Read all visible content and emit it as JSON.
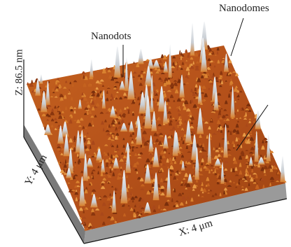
{
  "annotations": {
    "nanodomes": "Nanodomes",
    "nanodots": "Nanodots"
  },
  "axes": {
    "z": "Z: 86.5 nm",
    "y": "Y: 4 μm",
    "x": "X: 4 μm"
  },
  "colors": {
    "surface_base": "#b8521a",
    "surface_light": "#d9822f",
    "surface_dark": "#6b2a0c",
    "peak": "#dfe3e8",
    "side_wall": "#9a9a9a",
    "base_shadow": "#6e6e6e",
    "axis_line": "#111111"
  }
}
